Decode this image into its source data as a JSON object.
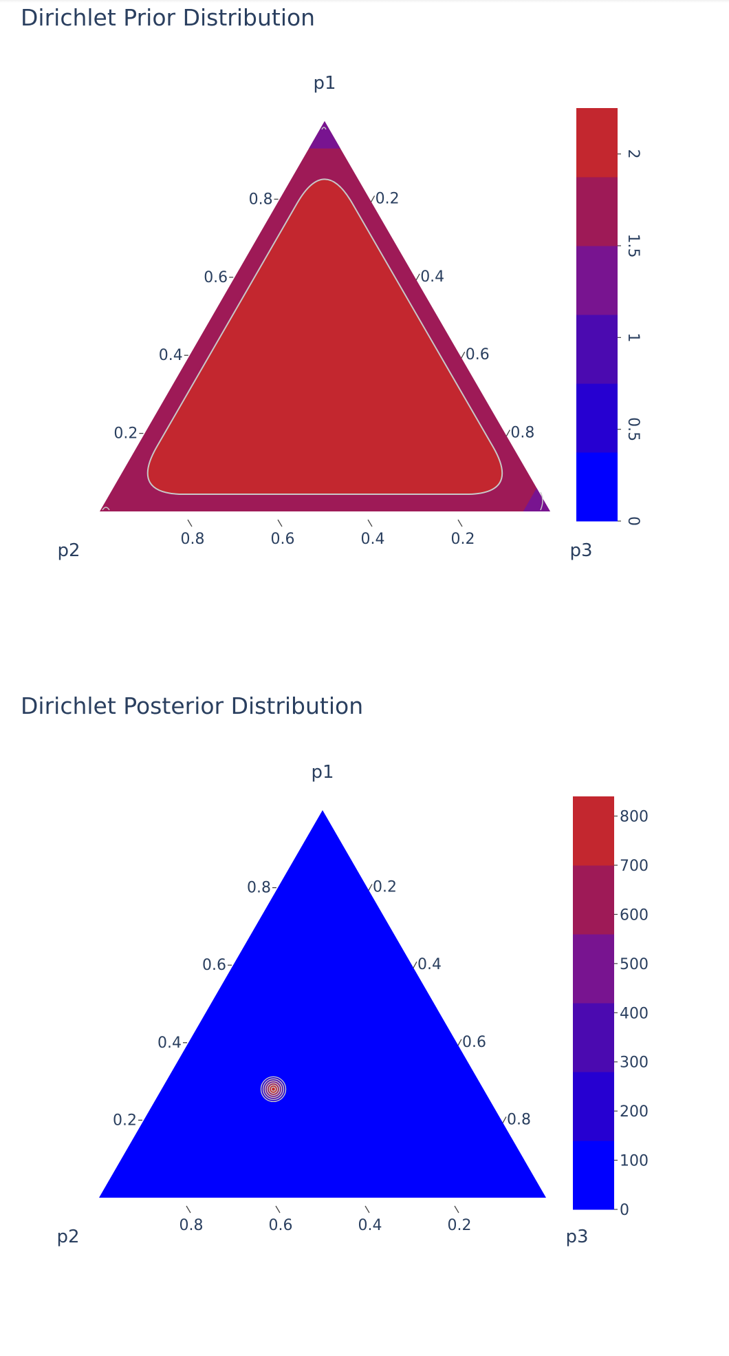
{
  "chart_data": [
    {
      "type": "ternary_contour",
      "title": "Dirichlet Prior Distribution",
      "axes": {
        "a_title": "p1",
        "b_title": "p2",
        "c_title": "p3"
      },
      "a_ticks": [
        "0.2",
        "0.4",
        "0.6",
        "0.8"
      ],
      "b_ticks": [
        "0.8",
        "0.6",
        "0.4",
        "0.2"
      ],
      "c_ticks": [
        "0.2",
        "0.4",
        "0.6",
        "0.8"
      ],
      "colorbar": {
        "min": 0,
        "max": 2.25,
        "ticks": [
          {
            "value": 0,
            "label": "0"
          },
          {
            "value": 0.5,
            "label": "0.5"
          },
          {
            "value": 1,
            "label": "1"
          },
          {
            "value": 1.5,
            "label": "1.5"
          },
          {
            "value": 2,
            "label": "2"
          }
        ],
        "tick_label_rotation": 90,
        "colors": [
          "#0000ff",
          "#2600d1",
          "#4b0ab0",
          "#781490",
          "#9e1a57",
          "#c3272f"
        ]
      },
      "fill_base": "#9e1a57",
      "fill_peak": "#c3272f",
      "contour_line_color": "#c8c8c8"
    },
    {
      "type": "ternary_contour",
      "title": "Dirichlet Posterior Distribution",
      "axes": {
        "a_title": "p1",
        "b_title": "p2",
        "c_title": "p3"
      },
      "a_ticks": [
        "0.2",
        "0.4",
        "0.6",
        "0.8"
      ],
      "b_ticks": [
        "0.8",
        "0.6",
        "0.4",
        "0.2"
      ],
      "c_ticks": [
        "0.2",
        "0.4",
        "0.6",
        "0.8"
      ],
      "colorbar": {
        "min": 0,
        "max": 840,
        "ticks": [
          {
            "value": 0,
            "label": "0"
          },
          {
            "value": 100,
            "label": "100"
          },
          {
            "value": 200,
            "label": "200"
          },
          {
            "value": 300,
            "label": "300"
          },
          {
            "value": 400,
            "label": "400"
          },
          {
            "value": 500,
            "label": "500"
          },
          {
            "value": 600,
            "label": "600"
          },
          {
            "value": 700,
            "label": "700"
          },
          {
            "value": 800,
            "label": "800"
          }
        ],
        "tick_label_rotation": 0,
        "colors": [
          "#0000ff",
          "#2600d1",
          "#4b0ab0",
          "#781490",
          "#9e1a57",
          "#c3272f"
        ]
      },
      "fill_base": "#0000ff",
      "fill_peak": "#c3272f",
      "peak": {
        "p1": 0.28,
        "p2": 0.47,
        "p3": 0.25
      },
      "contour_line_color": "#c8c8c8"
    }
  ]
}
